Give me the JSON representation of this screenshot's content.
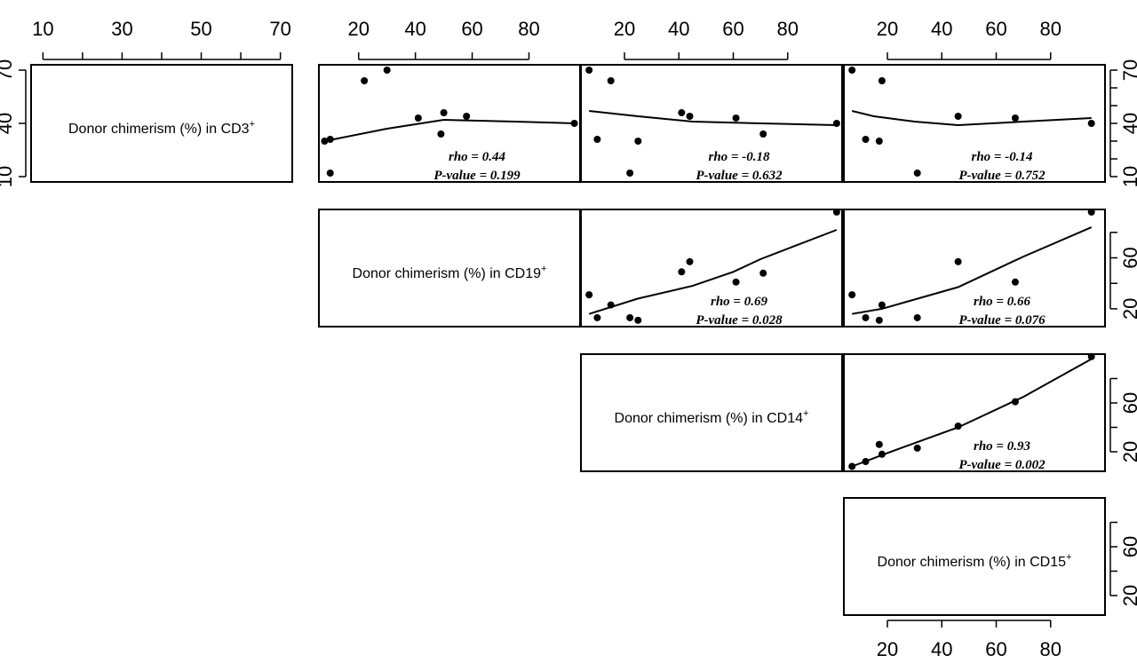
{
  "chart_data": {
    "type": "scatter",
    "variables": [
      {
        "id": "cd3",
        "label": "Donor chimerism (%) in CD3",
        "sup": "+",
        "range": [
          7,
          73
        ]
      },
      {
        "id": "cd19",
        "label": "Donor chimerism (%) in CD19",
        "sup": "+",
        "range": [
          6,
          98
        ]
      },
      {
        "id": "cd14",
        "label": "Donor chimerism (%) in CD14",
        "sup": "+",
        "range": [
          4,
          100
        ]
      },
      {
        "id": "cd15",
        "label": "Donor chimerism (%) in CD15",
        "sup": "+",
        "range": [
          4,
          100
        ]
      }
    ],
    "axes": {
      "top": [
        {
          "panel": 0,
          "ticks": [
            10,
            20,
            30,
            40,
            50,
            60,
            70
          ],
          "labels": [
            "10",
            "30",
            "50",
            "70"
          ]
        },
        {
          "panel": 1,
          "ticks": [
            20,
            40,
            60,
            80
          ],
          "labels": [
            "20",
            "40",
            "60",
            "80"
          ]
        },
        {
          "panel": 2,
          "ticks": [
            20,
            40,
            60,
            80
          ],
          "labels": [
            "20",
            "40",
            "60",
            "80"
          ]
        },
        {
          "panel": 3,
          "ticks": [
            20,
            40,
            60,
            80
          ],
          "labels": [
            "20",
            "40",
            "60",
            "80"
          ]
        }
      ],
      "bottom": [
        {
          "panel": 3,
          "ticks": [
            20,
            40,
            60,
            80
          ],
          "labels": [
            "20",
            "40",
            "60",
            "80"
          ]
        }
      ],
      "left": [
        {
          "panel": 0,
          "ticks": [
            10,
            40,
            70
          ],
          "labels": [
            "10",
            "40",
            "70"
          ]
        }
      ],
      "right": [
        {
          "panel": 0,
          "ticks": [
            10,
            20,
            30,
            40,
            50,
            60,
            70
          ],
          "labels": [
            "10",
            "40",
            "70"
          ]
        },
        {
          "panel": 1,
          "ticks": [
            20,
            40,
            60,
            80
          ],
          "labels": [
            "20",
            "60"
          ]
        },
        {
          "panel": 2,
          "ticks": [
            20,
            40,
            60,
            80
          ],
          "labels": [
            "20",
            "60"
          ]
        },
        {
          "panel": 3,
          "ticks": [
            20,
            40,
            60,
            80
          ],
          "labels": [
            "20",
            "60"
          ]
        }
      ]
    },
    "panels": [
      {
        "row": 0,
        "col": 1,
        "rho": "rho = 0.44",
        "p": "P-value = 0.199",
        "points": [
          [
            8,
            30
          ],
          [
            10,
            31
          ],
          [
            10,
            12
          ],
          [
            22,
            64
          ],
          [
            30,
            70
          ],
          [
            41,
            43
          ],
          [
            49,
            34
          ],
          [
            50,
            46
          ],
          [
            58,
            44
          ],
          [
            96,
            40
          ]
        ],
        "smooth": [
          [
            8,
            30
          ],
          [
            30,
            37
          ],
          [
            50,
            42
          ],
          [
            75,
            41
          ],
          [
            96,
            40
          ]
        ]
      },
      {
        "row": 0,
        "col": 2,
        "rho": "rho = -0.18",
        "p": "P-value = 0.632",
        "points": [
          [
            7,
            70
          ],
          [
            10,
            31
          ],
          [
            15,
            64
          ],
          [
            22,
            12
          ],
          [
            25,
            30
          ],
          [
            41,
            46
          ],
          [
            44,
            44
          ],
          [
            61,
            43
          ],
          [
            71,
            34
          ],
          [
            98,
            40
          ]
        ],
        "smooth": [
          [
            7,
            47
          ],
          [
            25,
            44
          ],
          [
            45,
            41
          ],
          [
            70,
            40
          ],
          [
            98,
            39
          ]
        ]
      },
      {
        "row": 0,
        "col": 3,
        "rho": "rho = -0.14",
        "p": "P-value = 0.752",
        "points": [
          [
            7,
            70
          ],
          [
            12,
            31
          ],
          [
            17,
            30
          ],
          [
            18,
            64
          ],
          [
            31,
            12
          ],
          [
            46,
            44
          ],
          [
            67,
            43
          ],
          [
            95,
            40
          ]
        ],
        "smooth": [
          [
            7,
            47
          ],
          [
            15,
            44
          ],
          [
            30,
            41
          ],
          [
            46,
            39
          ],
          [
            70,
            41
          ],
          [
            95,
            43
          ]
        ]
      },
      {
        "row": 1,
        "col": 2,
        "rho": "rho = 0.69",
        "p": "P-value = 0.028",
        "points": [
          [
            7,
            31
          ],
          [
            10,
            13
          ],
          [
            15,
            23
          ],
          [
            22,
            13
          ],
          [
            25,
            11
          ],
          [
            41,
            49
          ],
          [
            44,
            57
          ],
          [
            61,
            41
          ],
          [
            71,
            48
          ],
          [
            98,
            96
          ]
        ],
        "smooth": [
          [
            7,
            16
          ],
          [
            25,
            28
          ],
          [
            45,
            38
          ],
          [
            60,
            49
          ],
          [
            70,
            59
          ],
          [
            98,
            82
          ]
        ]
      },
      {
        "row": 1,
        "col": 3,
        "rho": "rho = 0.66",
        "p": "P-value = 0.076",
        "points": [
          [
            7,
            31
          ],
          [
            12,
            13
          ],
          [
            17,
            11
          ],
          [
            18,
            23
          ],
          [
            31,
            13
          ],
          [
            46,
            57
          ],
          [
            67,
            41
          ],
          [
            95,
            96
          ]
        ],
        "smooth": [
          [
            7,
            16
          ],
          [
            18,
            20
          ],
          [
            46,
            37
          ],
          [
            70,
            61
          ],
          [
            95,
            84
          ]
        ]
      },
      {
        "row": 2,
        "col": 3,
        "rho": "rho = 0.93",
        "p": "P-value = 0.002",
        "points": [
          [
            7,
            8
          ],
          [
            12,
            12
          ],
          [
            17,
            26
          ],
          [
            18,
            18
          ],
          [
            31,
            23
          ],
          [
            46,
            41
          ],
          [
            67,
            61
          ],
          [
            95,
            98
          ]
        ],
        "smooth": [
          [
            7,
            8
          ],
          [
            20,
            19
          ],
          [
            46,
            40
          ],
          [
            70,
            65
          ],
          [
            95,
            96
          ]
        ]
      }
    ]
  }
}
